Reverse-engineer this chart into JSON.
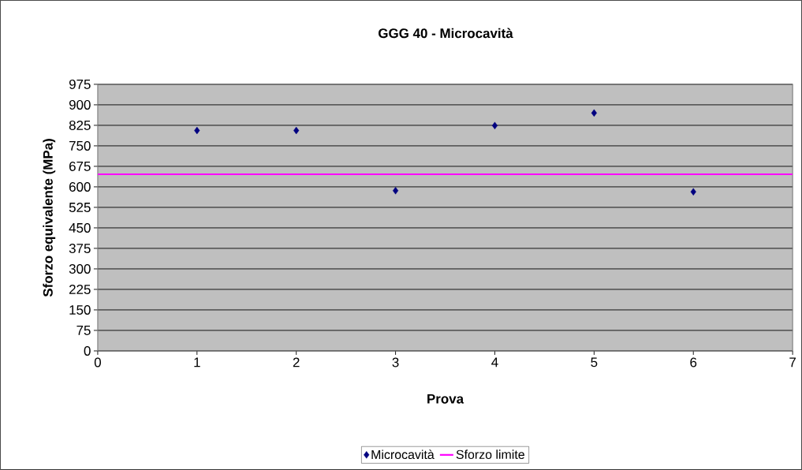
{
  "chart_data": {
    "type": "scatter",
    "title": "GGG 40 - Microcavità",
    "xlabel": "Prova",
    "ylabel": "Sforzo equivalente (MPa)",
    "xlim": [
      0,
      7
    ],
    "xticks": [
      0,
      1,
      2,
      3,
      4,
      5,
      6,
      7
    ],
    "ylim": [
      0,
      975
    ],
    "yticks": [
      0,
      75,
      150,
      225,
      300,
      375,
      450,
      525,
      600,
      675,
      750,
      825,
      900,
      975
    ],
    "grid": "y",
    "legend": "bottom",
    "series": [
      {
        "name": "Microcavità",
        "marker": "diamond",
        "color": "#000080",
        "x": [
          1,
          2,
          3,
          4,
          5,
          6
        ],
        "values": [
          806,
          806,
          586,
          824,
          870,
          582
        ]
      },
      {
        "name": "Sforzo limite",
        "type": "line",
        "marker": "none",
        "line_style": "solid",
        "color": "#ff00ff",
        "x": [
          0,
          1,
          2,
          3,
          4,
          5,
          6,
          7
        ],
        "values": [
          646,
          646,
          646,
          646,
          646,
          646,
          646,
          646
        ]
      }
    ]
  }
}
